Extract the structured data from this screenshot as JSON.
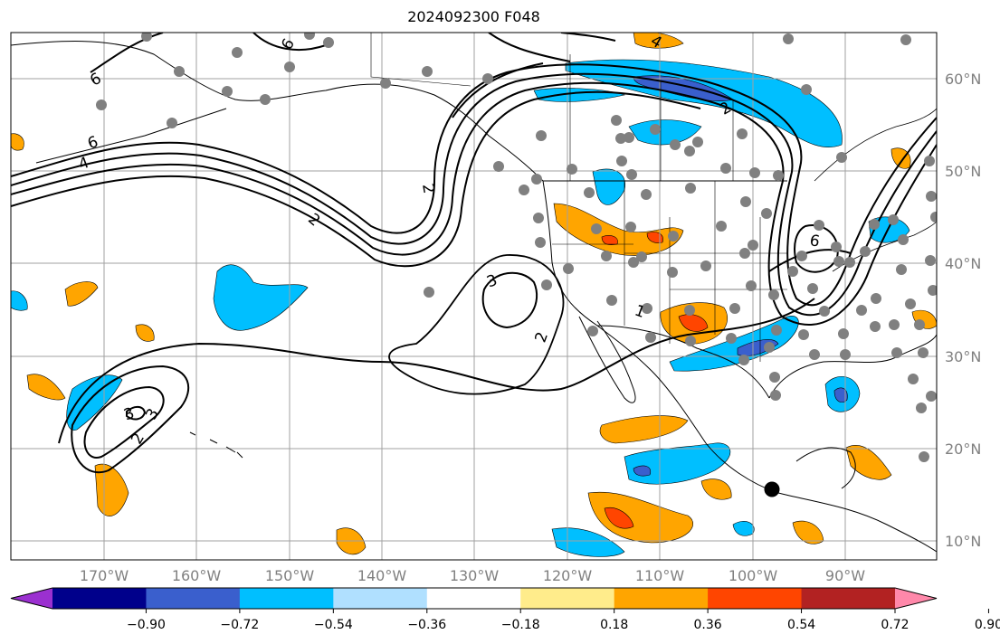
{
  "title": "2024092300 F048",
  "lat_ticks": [
    "60°N",
    "50°N",
    "40°N",
    "30°N",
    "20°N",
    "10°N"
  ],
  "lon_ticks": [
    "170°W",
    "160°W",
    "150°W",
    "140°W",
    "130°W",
    "120°W",
    "110°W",
    "100°W",
    "90°W"
  ],
  "colorbar": {
    "labels": [
      "−0.90",
      "−0.72",
      "−0.54",
      "−0.36",
      "−0.18",
      "0.18",
      "0.36",
      "0.54",
      "0.72",
      "0.90"
    ],
    "colors": [
      "#9b30d0",
      "#00008b",
      "#3a5fcd",
      "#00bfff",
      "#b0e0ff",
      "#ffffff",
      "#ffec8b",
      "#ffa500",
      "#ff4500",
      "#b22222",
      "#ff88aa"
    ]
  },
  "contour_labels": [
    "6",
    "6",
    "6",
    "4",
    "2",
    "2",
    "3",
    "3",
    "2",
    "2",
    "1",
    "3",
    "6",
    "4",
    "2"
  ],
  "colors": {
    "positive_fill": "#ffa500",
    "strong_positive": "#ff4500",
    "negative_fill": "#00bfff",
    "strong_negative": "#3a5fcd",
    "station_dot": "#808080"
  }
}
